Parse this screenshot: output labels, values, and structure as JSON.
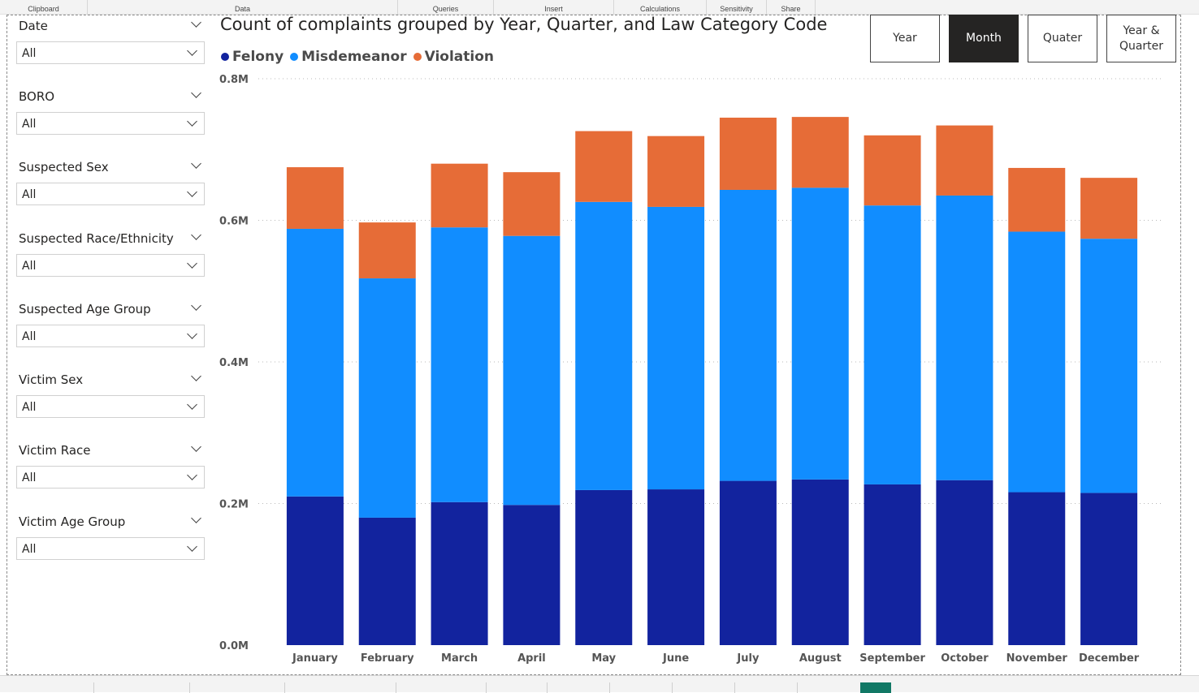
{
  "ribbon": {
    "groups": [
      "Clipboard",
      "Data",
      "Queries",
      "Insert",
      "Calculations",
      "Sensitivity",
      "Share"
    ]
  },
  "slicers": [
    {
      "label": "Date",
      "value": "All"
    },
    {
      "label": "BORO",
      "value": "All"
    },
    {
      "label": "Suspected Sex",
      "value": "All"
    },
    {
      "label": "Suspected Race/Ethnicity",
      "value": "All"
    },
    {
      "label": "Suspected Age Group",
      "value": "All"
    },
    {
      "label": "Victim Sex",
      "value": "All"
    },
    {
      "label": "Victim Race",
      "value": "All"
    },
    {
      "label": "Victim Age Group",
      "value": "All"
    }
  ],
  "buttons": [
    {
      "label": "Year",
      "active": false
    },
    {
      "label": "Month",
      "active": true
    },
    {
      "label": "Quater",
      "active": false
    },
    {
      "label": "Year & Quarter",
      "active": false
    }
  ],
  "colors": {
    "felony": "#12239e",
    "misdemeanor": "#118dff",
    "violation": "#e66c37",
    "active_button": "#252423",
    "active_tab": "#117865"
  },
  "chart_data": {
    "type": "bar",
    "stacked": true,
    "title": "Count of complaints grouped by Year, Quarter, and Law Category Code",
    "categories": [
      "January",
      "February",
      "March",
      "April",
      "May",
      "June",
      "July",
      "August",
      "September",
      "October",
      "November",
      "December"
    ],
    "series": [
      {
        "name": "Felony",
        "values": [
          0.21,
          0.18,
          0.202,
          0.198,
          0.219,
          0.22,
          0.232,
          0.234,
          0.227,
          0.233,
          0.216,
          0.215
        ]
      },
      {
        "name": "Misdemeanor",
        "values": [
          0.378,
          0.338,
          0.388,
          0.38,
          0.407,
          0.399,
          0.411,
          0.412,
          0.394,
          0.402,
          0.368,
          0.359
        ]
      },
      {
        "name": "Violation",
        "values": [
          0.087,
          0.079,
          0.09,
          0.09,
          0.1,
          0.1,
          0.102,
          0.1,
          0.099,
          0.099,
          0.09,
          0.086
        ]
      }
    ],
    "ylim": [
      0,
      0.8
    ],
    "yticks": [
      "0.0M",
      "0.2M",
      "0.4M",
      "0.6M",
      "0.8M"
    ],
    "grid": true,
    "legend_position": "top-left"
  }
}
